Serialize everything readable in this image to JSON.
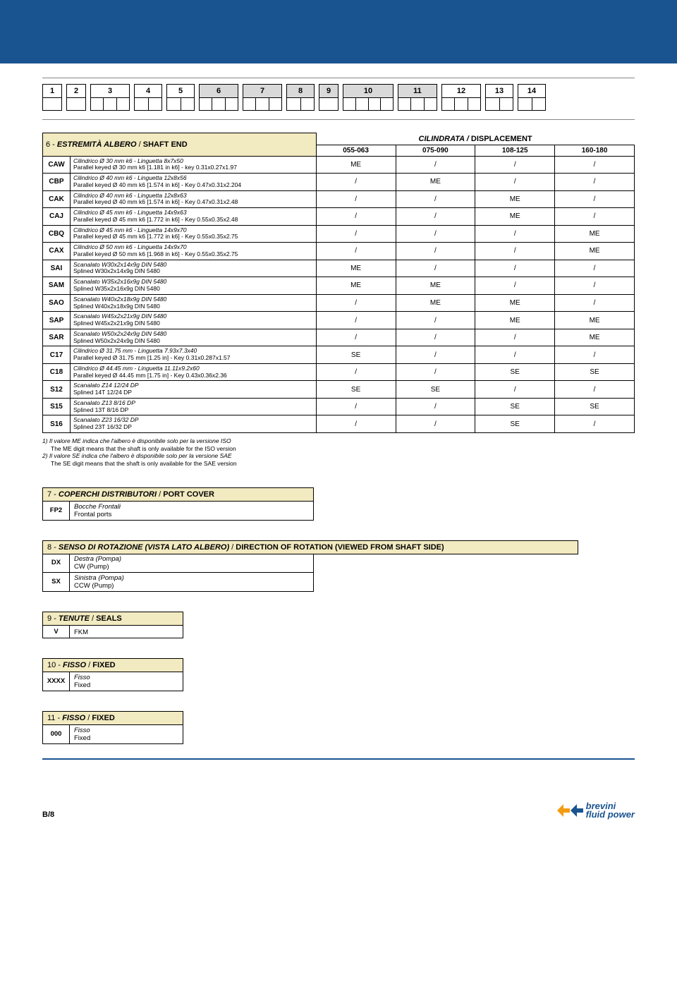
{
  "positions": [
    {
      "n": "1",
      "cells": 1,
      "shaded": false
    },
    {
      "n": "2",
      "cells": 1,
      "shaded": false
    },
    {
      "n": "3",
      "cells": 3,
      "shaded": false
    },
    {
      "n": "4",
      "cells": 2,
      "shaded": false
    },
    {
      "n": "5",
      "cells": 2,
      "shaded": false
    },
    {
      "n": "6",
      "cells": 3,
      "shaded": true
    },
    {
      "n": "7",
      "cells": 3,
      "shaded": true
    },
    {
      "n": "8",
      "cells": 2,
      "shaded": true
    },
    {
      "n": "9",
      "cells": 1,
      "shaded": true
    },
    {
      "n": "10",
      "cells": 4,
      "shaded": true
    },
    {
      "n": "11",
      "cells": 3,
      "shaded": true
    },
    {
      "n": "12",
      "cells": 3,
      "shaded": false
    },
    {
      "n": "13",
      "cells": 2,
      "shaded": false
    },
    {
      "n": "14",
      "cells": 2,
      "shaded": false
    }
  ],
  "t6": {
    "title_num": "6",
    "title_it": "ESTREMITÀ ALBERO",
    "title_en": "SHAFT END",
    "disp_it": "CILINDRATA",
    "disp_en": "DISPLACEMENT",
    "cols": [
      "055-063",
      "075-090",
      "108-125",
      "160-180"
    ],
    "rows": [
      {
        "code": "CAW",
        "it": "Cilindrico Ø 30 mm k6 - Linguetta 8x7x50",
        "en": "Parallel keyed Ø 30 mm k6 [1.181 in k6] - key 0.31x0.27x1.97",
        "v": [
          "ME",
          "/",
          "/",
          "/"
        ]
      },
      {
        "code": "CBP",
        "it": "Cilindrico Ø 40 mm k6 - Linguetta 12x8x56",
        "en": "Parallel keyed Ø 40 mm k6 [1.574 in k6] - Key 0.47x0.31x2.204",
        "v": [
          "/",
          "ME",
          "/",
          "/"
        ]
      },
      {
        "code": "CAK",
        "it": "Cilindrico Ø 40 mm k6 - Linguetta 12x8x63",
        "en": "Parallel keyed Ø 40 mm k6 [1.574 in k6] - Key 0.47x0.31x2.48",
        "v": [
          "/",
          "/",
          "ME",
          "/"
        ]
      },
      {
        "code": "CAJ",
        "it": "Cilindrico Ø 45 mm k6 - Linguetta 14x9x63",
        "en": "Parallel keyed Ø 45 mm k6 [1.772 in k6] - Key 0.55x0.35x2.48",
        "v": [
          "/",
          "/",
          "ME",
          "/"
        ]
      },
      {
        "code": "CBQ",
        "it": "Cilindrico Ø 45 mm k6 - Linguetta 14x9x70",
        "en": "Parallel keyed Ø 45 mm k6 [1.772 in k6] - Key 0.55x0.35x2.75",
        "v": [
          "/",
          "/",
          "/",
          "ME"
        ]
      },
      {
        "code": "CAX",
        "it": "Cilindrico Ø 50 mm k6 - Linguetta 14x9x70",
        "en": "Parallel keyed Ø 50 mm k6 [1.968 in k6] - Key 0.55x0.35x2.75",
        "v": [
          "/",
          "/",
          "/",
          "ME"
        ]
      },
      {
        "code": "SAI",
        "it": "Scanalato W30x2x14x9g DIN 5480",
        "en": "Splined W30x2x14x9g DIN 5480",
        "v": [
          "ME",
          "/",
          "/",
          "/"
        ]
      },
      {
        "code": "SAM",
        "it": "Scanalato W35x2x16x9g DIN 5480",
        "en": "Splined W35x2x16x9g DIN 5480",
        "v": [
          "ME",
          "ME",
          "/",
          "/"
        ]
      },
      {
        "code": "SAO",
        "it": "Scanalato W40x2x18x9g DIN 5480",
        "en": "Splined W40x2x18x9g DIN 5480",
        "v": [
          "/",
          "ME",
          "ME",
          "/"
        ]
      },
      {
        "code": "SAP",
        "it": "Scanalato W45x2x21x9g DIN 5480",
        "en": "Splined W45x2x21x9g DIN 5480",
        "v": [
          "/",
          "/",
          "ME",
          "ME"
        ]
      },
      {
        "code": "SAR",
        "it": "Scanalato W50x2x24x9g DIN 5480",
        "en": "Splined W50x2x24x9g DIN 5480",
        "v": [
          "/",
          "/",
          "/",
          "ME"
        ]
      },
      {
        "code": "C17",
        "it": "Cilindrico Ø 31.75 mm - Linguetta 7.93x7.3x40",
        "en": "Parallel keyed Ø 31.75 mm [1.25 in] - Key 0.31x0.287x1.57",
        "v": [
          "SE",
          "/",
          "/",
          "/"
        ]
      },
      {
        "code": "C18",
        "it": "Cilindrico Ø 44.45 mm - Linguetta 11.11x9.2x60",
        "en": "Parallel keyed Ø 44.45 mm [1.75 in] - Key 0.43x0.36x2.36",
        "v": [
          "/",
          "/",
          "SE",
          "SE"
        ]
      },
      {
        "code": "S12",
        "it": "Scanalato Z14 12/24 DP",
        "en": "Splined 14T 12/24 DP",
        "v": [
          "SE",
          "SE",
          "/",
          "/"
        ]
      },
      {
        "code": "S15",
        "it": "Scanalato Z13 8/16 DP",
        "en": "Splined 13T 8/16 DP",
        "v": [
          "/",
          "/",
          "SE",
          "SE"
        ]
      },
      {
        "code": "S16",
        "it": "Scanalato Z23 16/32 DP",
        "en": "Splined 23T 16/32 DP",
        "v": [
          "/",
          "/",
          "SE",
          "/"
        ]
      }
    ]
  },
  "notes": {
    "l1_it": "1) Il valore ME indica che l'albero è disponibile solo per la versione ISO",
    "l1_en": "The ME digit means that the shaft is only available for the ISO version",
    "l2_it": "2) Il valore SE indica che l'albero è disponibile solo per la versione SAE",
    "l2_en": "The SE digit means that the shaft is only available for the SAE version"
  },
  "s7": {
    "num": "7",
    "it": "COPERCHI DISTRIBUTORI",
    "en": "PORT COVER",
    "code": "FP2",
    "row_it": "Bocche Frontali",
    "row_en": "Frontal ports"
  },
  "s8": {
    "num": "8",
    "it": "SENSO DI ROTAZIONE (VISTA LATO ALBERO)",
    "en": "DIRECTION OF ROTATION (VIEWED FROM SHAFT SIDE)",
    "rows": [
      {
        "code": "DX",
        "it": "Destra (Pompa)",
        "en": "CW (Pump)"
      },
      {
        "code": "SX",
        "it": "Sinistra (Pompa)",
        "en": "CCW (Pump)"
      }
    ]
  },
  "s9": {
    "num": "9",
    "it": "TENUTE",
    "en": "SEALS",
    "code": "V",
    "row": "FKM"
  },
  "s10": {
    "num": "10",
    "it": "FISSO",
    "en": "FIXED",
    "code": "XXXX",
    "row_it": "Fisso",
    "row_en": "Fixed"
  },
  "s11": {
    "num": "11",
    "it": "FISSO",
    "en": "FIXED",
    "code": "000",
    "row_it": "Fisso",
    "row_en": "Fixed"
  },
  "footer": {
    "page": "B/8",
    "brand1": "brevini",
    "brand2": "fluid power",
    "logo_color": "#1a5490",
    "accent": "#f39c12"
  }
}
